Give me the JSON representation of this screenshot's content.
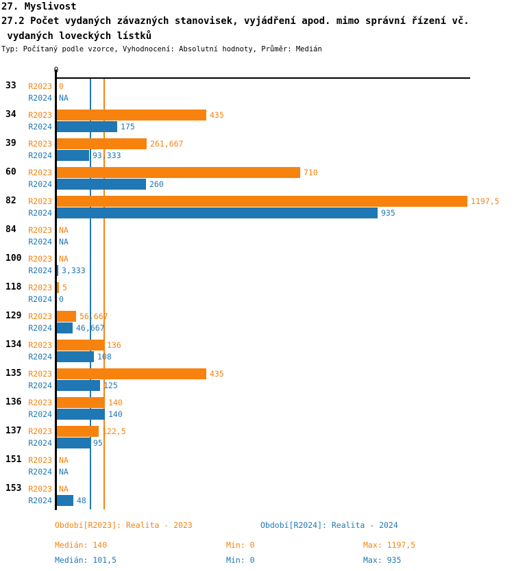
{
  "header": {
    "title": "27. Myslivost",
    "subtitle_line1": "27.2 Počet vydaných závazných stanovisek, vyjádření apod. mimo správní řízení vč.",
    "subtitle_line2": " vydaných loveckých lístků",
    "meta": "Typ: Počítaný podle vzorce, Vyhodnocení: Absolutní hodnoty, Průměr: Medián"
  },
  "colors": {
    "r2023": "#f8820e",
    "r2024": "#1f77b4",
    "axis": "#000000"
  },
  "chart_data": {
    "type": "bar",
    "orientation": "horizontal",
    "title": "27.2 Počet vydaných závazných stanovisek, vyjádření apod. mimo správní řízení vč. vydaných loveckých lístků",
    "xlabel": "",
    "ylabel": "",
    "xlim": [
      0,
      1208
    ],
    "axis_tick_labels": [
      "0"
    ],
    "grid": false,
    "legend_position": "bottom",
    "categories": [
      "33",
      "34",
      "39",
      "60",
      "82",
      "84",
      "100",
      "118",
      "129",
      "134",
      "135",
      "136",
      "137",
      "151",
      "153"
    ],
    "series": [
      {
        "name": "R2023",
        "legend": "Období[R2023]: Realita - 2023",
        "color": "#f8820e",
        "values": [
          0,
          435,
          261.667,
          710,
          1197.5,
          null,
          null,
          5,
          56.667,
          136,
          435,
          140,
          122.5,
          null,
          null
        ],
        "labels": [
          "0",
          "435",
          "261,667",
          "710",
          "1197,5",
          "NA",
          "NA",
          "5",
          "56,667",
          "136",
          "435",
          "140",
          "122,5",
          "NA",
          "NA"
        ],
        "median": 140,
        "stats": {
          "median": "Medián: 140",
          "min": "Min: 0",
          "max": "Max: 1197,5"
        }
      },
      {
        "name": "R2024",
        "legend": "Období[R2024]: Realita - 2024",
        "color": "#1f77b4",
        "values": [
          null,
          175,
          93.333,
          260,
          935,
          null,
          3.333,
          0,
          46.667,
          108,
          125,
          140,
          95,
          null,
          48
        ],
        "labels": [
          "NA",
          "175",
          "93,333",
          "260",
          "935",
          "NA",
          "3,333",
          "0",
          "46,667",
          "108",
          "125",
          "140",
          "95",
          "NA",
          "48"
        ],
        "median": 101.5,
        "stats": {
          "median": "Medián: 101,5",
          "min": "Min: 0",
          "max": "Max: 935"
        }
      }
    ],
    "median_lines": [
      {
        "series": "R2023",
        "value": 140
      },
      {
        "series": "R2024",
        "value": 101.5
      }
    ]
  },
  "legend": {
    "series_labels": [
      {
        "text": "Období[R2023]: Realita - 2023"
      },
      {
        "text": "Období[R2024]: Realita - 2024"
      }
    ],
    "stats_rows": [
      {
        "median": "Medián: 140",
        "min": "Min: 0",
        "max": "Max: 1197,5"
      },
      {
        "median": "Medián: 101,5",
        "min": "Min: 0",
        "max": "Max: 935"
      }
    ]
  }
}
